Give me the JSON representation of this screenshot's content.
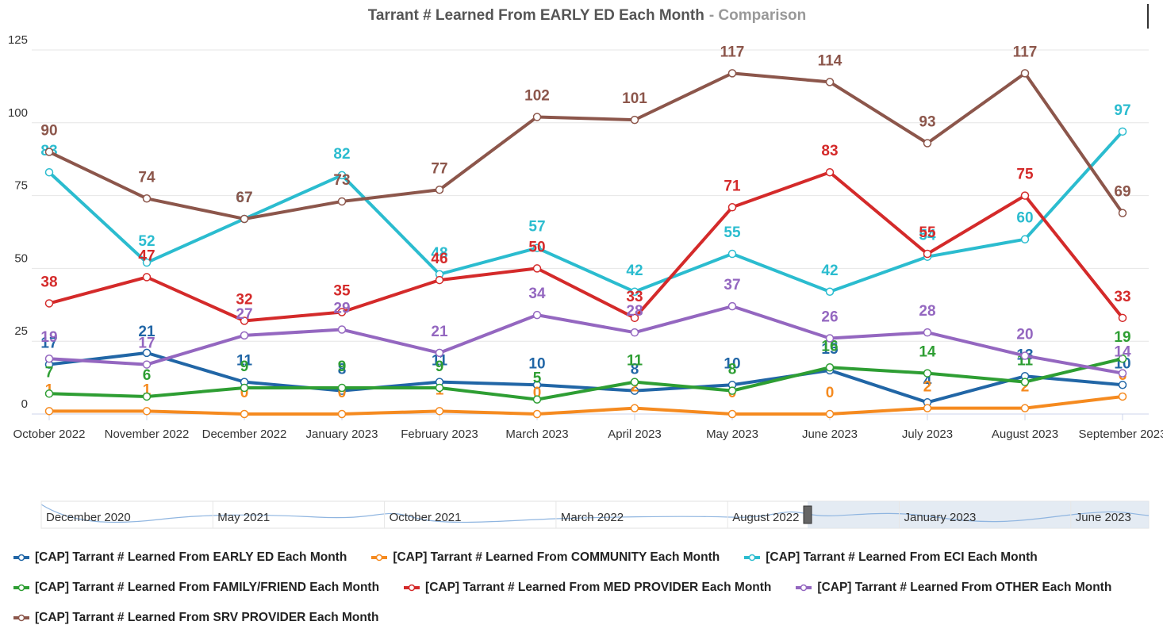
{
  "chart_data": {
    "type": "line",
    "title": "Tarrant # Learned From EARLY ED Each Month",
    "subtitle": "- Comparison",
    "categories": [
      "October 2022",
      "November 2022",
      "December 2022",
      "January 2023",
      "February 2023",
      "March 2023",
      "April 2023",
      "May 2023",
      "June 2023",
      "July 2023",
      "August 2023",
      "September 2023"
    ],
    "ylim": [
      0,
      125
    ],
    "yticks": [
      0,
      25,
      50,
      75,
      100,
      125
    ],
    "grid": true,
    "series": [
      {
        "name": "[CAP] Tarrant # Learned From EARLY ED Each Month",
        "color": "#2166a6",
        "values": [
          17,
          21,
          11,
          8,
          11,
          10,
          8,
          10,
          15,
          4,
          13,
          10
        ]
      },
      {
        "name": "[CAP] Tarrant # Learned From COMMUNITY Each Month",
        "color": "#f58a1f",
        "values": [
          1,
          1,
          0,
          0,
          1,
          0,
          2,
          0,
          0,
          2,
          2,
          6
        ]
      },
      {
        "name": "[CAP] Tarrant # Learned From ECI Each Month",
        "color": "#2bbccf",
        "values": [
          83,
          52,
          67,
          82,
          48,
          57,
          42,
          55,
          42,
          54,
          60,
          97
        ]
      },
      {
        "name": "[CAP] Tarrant # Learned From FAMILY/FRIEND Each Month",
        "color": "#2e9e33",
        "values": [
          7,
          6,
          9,
          9,
          9,
          5,
          11,
          8,
          16,
          14,
          11,
          19
        ]
      },
      {
        "name": "[CAP] Tarrant # Learned From MED PROVIDER Each Month",
        "color": "#d42a2a",
        "values": [
          38,
          47,
          32,
          35,
          46,
          50,
          33,
          71,
          83,
          55,
          75,
          33
        ]
      },
      {
        "name": "[CAP] Tarrant # Learned From OTHER Each Month",
        "color": "#9467c0",
        "values": [
          19,
          17,
          27,
          29,
          21,
          34,
          28,
          37,
          26,
          28,
          20,
          14
        ]
      },
      {
        "name": "[CAP] Tarrant # Learned From SRV PROVIDER Each Month",
        "color": "#8c564b",
        "values": [
          90,
          74,
          67,
          73,
          77,
          102,
          101,
          117,
          114,
          93,
          117,
          69
        ]
      }
    ],
    "navigator": {
      "labels": [
        "December 2020",
        "May 2021",
        "October 2021",
        "March 2022",
        "August 2022",
        "January 2023",
        "June 2023"
      ]
    }
  }
}
